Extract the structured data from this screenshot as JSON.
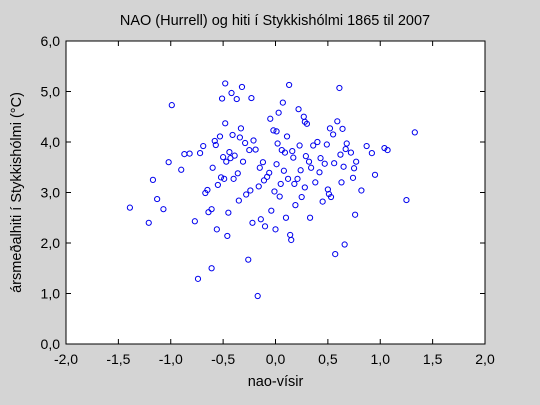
{
  "chart_data": {
    "type": "scatter",
    "title": "NAO (Hurrell) og hiti í Stykkishólmi 1865 til 2007",
    "xlabel": "nao-vísir",
    "ylabel": "ársmeðalhiti í Stykkishólmi (°C)",
    "xlim": [
      -2.0,
      2.0
    ],
    "ylim": [
      0.0,
      6.0
    ],
    "xticks": [
      -2.0,
      -1.5,
      -1.0,
      -0.5,
      0.0,
      0.5,
      1.0,
      1.5,
      2.0
    ],
    "yticks": [
      0.0,
      1.0,
      2.0,
      3.0,
      4.0,
      5.0,
      6.0
    ],
    "xtick_labels": [
      "-2,0",
      "-1,5",
      "-1,0",
      "-0,5",
      "0,0",
      "0,5",
      "1,0",
      "1,5",
      "2,0"
    ],
    "ytick_labels": [
      "0,0",
      "1,0",
      "2,0",
      "3,0",
      "4,0",
      "5,0",
      "6,0"
    ],
    "grid": false,
    "legend": "none",
    "marker_color": "#0000ee",
    "points": [
      [
        -1.39,
        2.7
      ],
      [
        -1.21,
        2.4
      ],
      [
        -1.17,
        3.25
      ],
      [
        -1.13,
        2.87
      ],
      [
        -1.07,
        2.67
      ],
      [
        -1.02,
        3.6
      ],
      [
        -0.99,
        4.73
      ],
      [
        -0.9,
        3.45
      ],
      [
        -0.87,
        3.76
      ],
      [
        -0.82,
        3.77
      ],
      [
        -0.77,
        2.43
      ],
      [
        -0.74,
        1.29
      ],
      [
        -0.72,
        3.78
      ],
      [
        -0.69,
        3.92
      ],
      [
        -0.67,
        2.99
      ],
      [
        -0.65,
        3.05
      ],
      [
        -0.64,
        2.61
      ],
      [
        -0.61,
        2.67
      ],
      [
        -0.61,
        1.5
      ],
      [
        -0.6,
        3.49
      ],
      [
        -0.58,
        4.02
      ],
      [
        -0.57,
        3.94
      ],
      [
        -0.56,
        2.27
      ],
      [
        -0.55,
        3.15
      ],
      [
        -0.53,
        4.11
      ],
      [
        -0.52,
        3.3
      ],
      [
        -0.51,
        4.86
      ],
      [
        -0.5,
        3.7
      ],
      [
        -0.49,
        3.27
      ],
      [
        -0.48,
        5.16
      ],
      [
        -0.48,
        4.37
      ],
      [
        -0.47,
        3.61
      ],
      [
        -0.46,
        2.14
      ],
      [
        -0.45,
        2.6
      ],
      [
        -0.44,
        3.8
      ],
      [
        -0.43,
        3.68
      ],
      [
        -0.42,
        4.97
      ],
      [
        -0.41,
        4.14
      ],
      [
        -0.4,
        3.27
      ],
      [
        -0.39,
        3.73
      ],
      [
        -0.37,
        4.85
      ],
      [
        -0.36,
        3.38
      ],
      [
        -0.35,
        2.84
      ],
      [
        -0.34,
        4.09
      ],
      [
        -0.33,
        4.27
      ],
      [
        -0.32,
        5.09
      ],
      [
        -0.31,
        3.61
      ],
      [
        -0.29,
        3.98
      ],
      [
        -0.28,
        2.96
      ],
      [
        -0.26,
        1.67
      ],
      [
        -0.25,
        3.84
      ],
      [
        -0.24,
        3.04
      ],
      [
        -0.23,
        4.87
      ],
      [
        -0.22,
        2.4
      ],
      [
        -0.21,
        4.03
      ],
      [
        -0.19,
        3.85
      ],
      [
        -0.17,
        0.95
      ],
      [
        -0.16,
        3.12
      ],
      [
        -0.15,
        3.49
      ],
      [
        -0.14,
        2.47
      ],
      [
        -0.12,
        3.6
      ],
      [
        -0.11,
        3.24
      ],
      [
        -0.1,
        2.33
      ],
      [
        -0.08,
        3.31
      ],
      [
        -0.06,
        3.39
      ],
      [
        -0.05,
        4.46
      ],
      [
        -0.04,
        2.64
      ],
      [
        -0.02,
        4.23
      ],
      [
        -0.01,
        3.02
      ],
      [
        0.0,
        2.27
      ],
      [
        0.01,
        4.21
      ],
      [
        0.01,
        3.56
      ],
      [
        0.02,
        3.97
      ],
      [
        0.03,
        4.58
      ],
      [
        0.04,
        2.92
      ],
      [
        0.05,
        3.17
      ],
      [
        0.06,
        3.84
      ],
      [
        0.07,
        4.78
      ],
      [
        0.08,
        3.43
      ],
      [
        0.09,
        3.79
      ],
      [
        0.1,
        2.5
      ],
      [
        0.11,
        4.11
      ],
      [
        0.12,
        3.27
      ],
      [
        0.13,
        5.13
      ],
      [
        0.14,
        2.16
      ],
      [
        0.15,
        2.06
      ],
      [
        0.16,
        3.82
      ],
      [
        0.17,
        3.69
      ],
      [
        0.18,
        3.17
      ],
      [
        0.19,
        2.75
      ],
      [
        0.21,
        3.27
      ],
      [
        0.22,
        4.65
      ],
      [
        0.23,
        3.93
      ],
      [
        0.24,
        3.44
      ],
      [
        0.25,
        2.91
      ],
      [
        0.27,
        4.5
      ],
      [
        0.28,
        3.1
      ],
      [
        0.28,
        4.4
      ],
      [
        0.29,
        3.72
      ],
      [
        0.3,
        4.36
      ],
      [
        0.32,
        3.61
      ],
      [
        0.33,
        2.5
      ],
      [
        0.34,
        3.49
      ],
      [
        0.36,
        3.93
      ],
      [
        0.38,
        3.2
      ],
      [
        0.4,
        4.0
      ],
      [
        0.42,
        3.4
      ],
      [
        0.43,
        3.68
      ],
      [
        0.45,
        2.82
      ],
      [
        0.47,
        3.57
      ],
      [
        0.49,
        3.95
      ],
      [
        0.5,
        3.06
      ],
      [
        0.51,
        2.97
      ],
      [
        0.52,
        4.27
      ],
      [
        0.53,
        2.91
      ],
      [
        0.55,
        4.15
      ],
      [
        0.56,
        3.58
      ],
      [
        0.57,
        1.78
      ],
      [
        0.59,
        4.41
      ],
      [
        0.61,
        5.07
      ],
      [
        0.62,
        3.75
      ],
      [
        0.63,
        3.2
      ],
      [
        0.64,
        4.26
      ],
      [
        0.65,
        3.51
      ],
      [
        0.66,
        1.97
      ],
      [
        0.67,
        3.86
      ],
      [
        0.68,
        3.97
      ],
      [
        0.72,
        3.79
      ],
      [
        0.74,
        3.29
      ],
      [
        0.75,
        3.48
      ],
      [
        0.76,
        2.56
      ],
      [
        0.77,
        3.61
      ],
      [
        0.82,
        3.04
      ],
      [
        0.87,
        3.92
      ],
      [
        0.92,
        3.78
      ],
      [
        0.95,
        3.35
      ],
      [
        1.04,
        3.88
      ],
      [
        1.07,
        3.84
      ],
      [
        1.25,
        2.85
      ],
      [
        1.33,
        4.19
      ]
    ]
  }
}
